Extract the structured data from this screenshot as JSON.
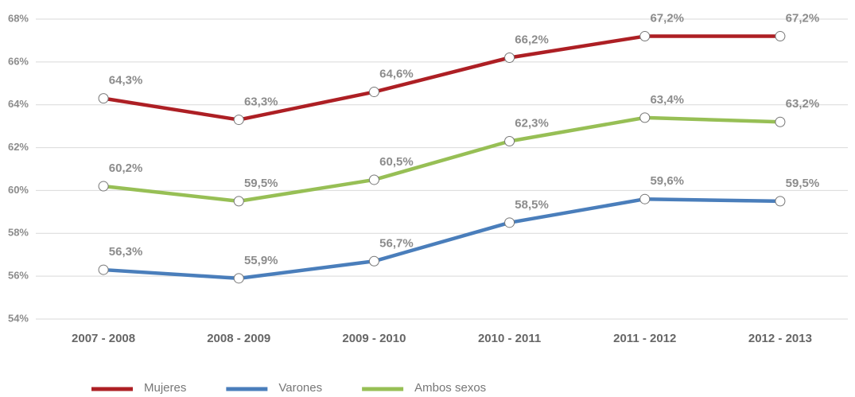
{
  "chart_data": {
    "type": "line",
    "categories": [
      "2007 - 2008",
      "2008 - 2009",
      "2009 - 2010",
      "2010 - 2011",
      "2011 - 2012",
      "2012 - 2013"
    ],
    "series": [
      {
        "name": "Mujeres",
        "color": "#ad1f24",
        "values": [
          64.3,
          63.3,
          64.6,
          66.2,
          67.2,
          67.2
        ],
        "value_labels": [
          "64,3%",
          "63,3%",
          "64,6%",
          "66,2%",
          "67,2%",
          "67,2%"
        ]
      },
      {
        "name": "Varones",
        "color": "#4a7ebb",
        "values": [
          56.3,
          55.9,
          56.7,
          58.5,
          59.6,
          59.5
        ],
        "value_labels": [
          "56,3%",
          "55,9%",
          "56,7%",
          "58,5%",
          "59,6%",
          "59,5%"
        ]
      },
      {
        "name": "Ambos sexos",
        "color": "#97bf55",
        "values": [
          60.2,
          59.5,
          60.5,
          62.3,
          63.4,
          63.2
        ],
        "value_labels": [
          "60,2%",
          "59,5%",
          "60,5%",
          "62,3%",
          "63,4%",
          "63,2%"
        ]
      }
    ],
    "ylim": [
      54,
      68
    ],
    "yticks": [
      {
        "value": 54,
        "label": "54%"
      },
      {
        "value": 56,
        "label": "56%"
      },
      {
        "value": 58,
        "label": "58%"
      },
      {
        "value": 60,
        "label": "60%"
      },
      {
        "value": 62,
        "label": "62%"
      },
      {
        "value": 64,
        "label": "64%"
      },
      {
        "value": 66,
        "label": "66%"
      },
      {
        "value": 68,
        "label": "68%"
      }
    ],
    "grid": true,
    "legend": "bottom"
  }
}
